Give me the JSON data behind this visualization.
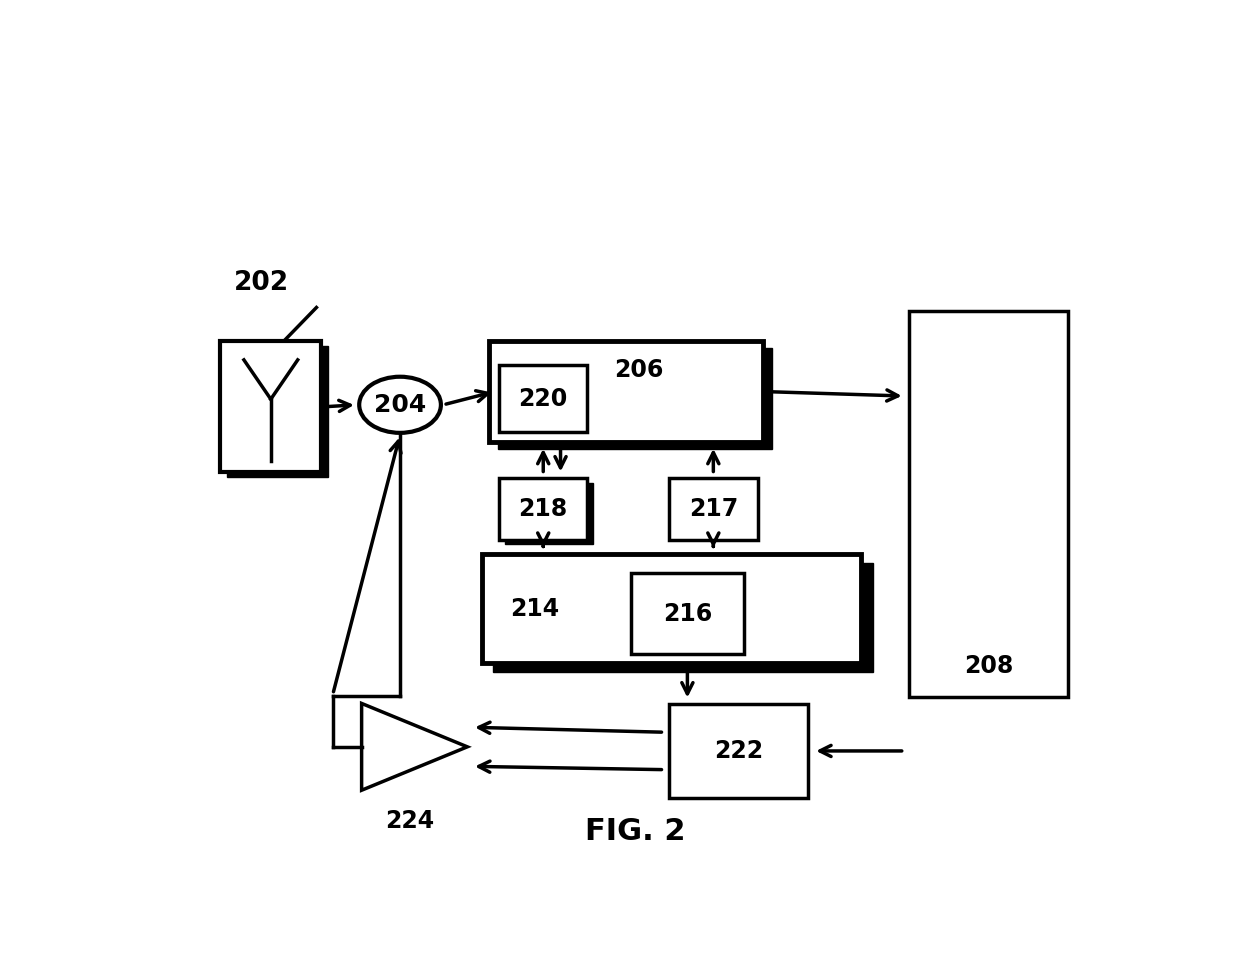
{
  "bg_color": "#ffffff",
  "line_color": "#000000",
  "fig_caption": "FIG. 2"
}
